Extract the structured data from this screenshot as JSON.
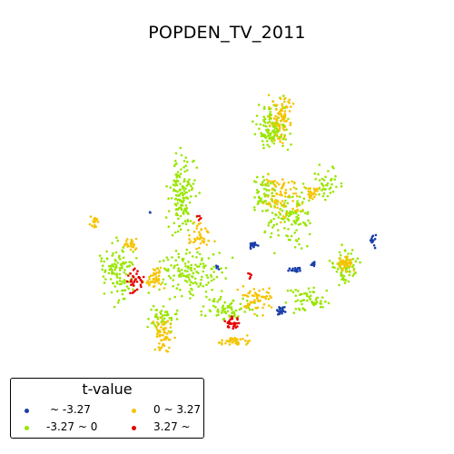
{
  "title": "POPDEN_TV_2011",
  "legend": {
    "title": "t-value",
    "items": [
      {
        "label": "~ -3.27",
        "color": "#1a3fa8"
      },
      {
        "label": "-3.27 ~ 0",
        "color": "#99e600"
      },
      {
        "label": "0 ~ 3.27",
        "color": "#f5c400"
      },
      {
        "label": "3.27 ~",
        "color": "#e60000"
      }
    ]
  }
}
